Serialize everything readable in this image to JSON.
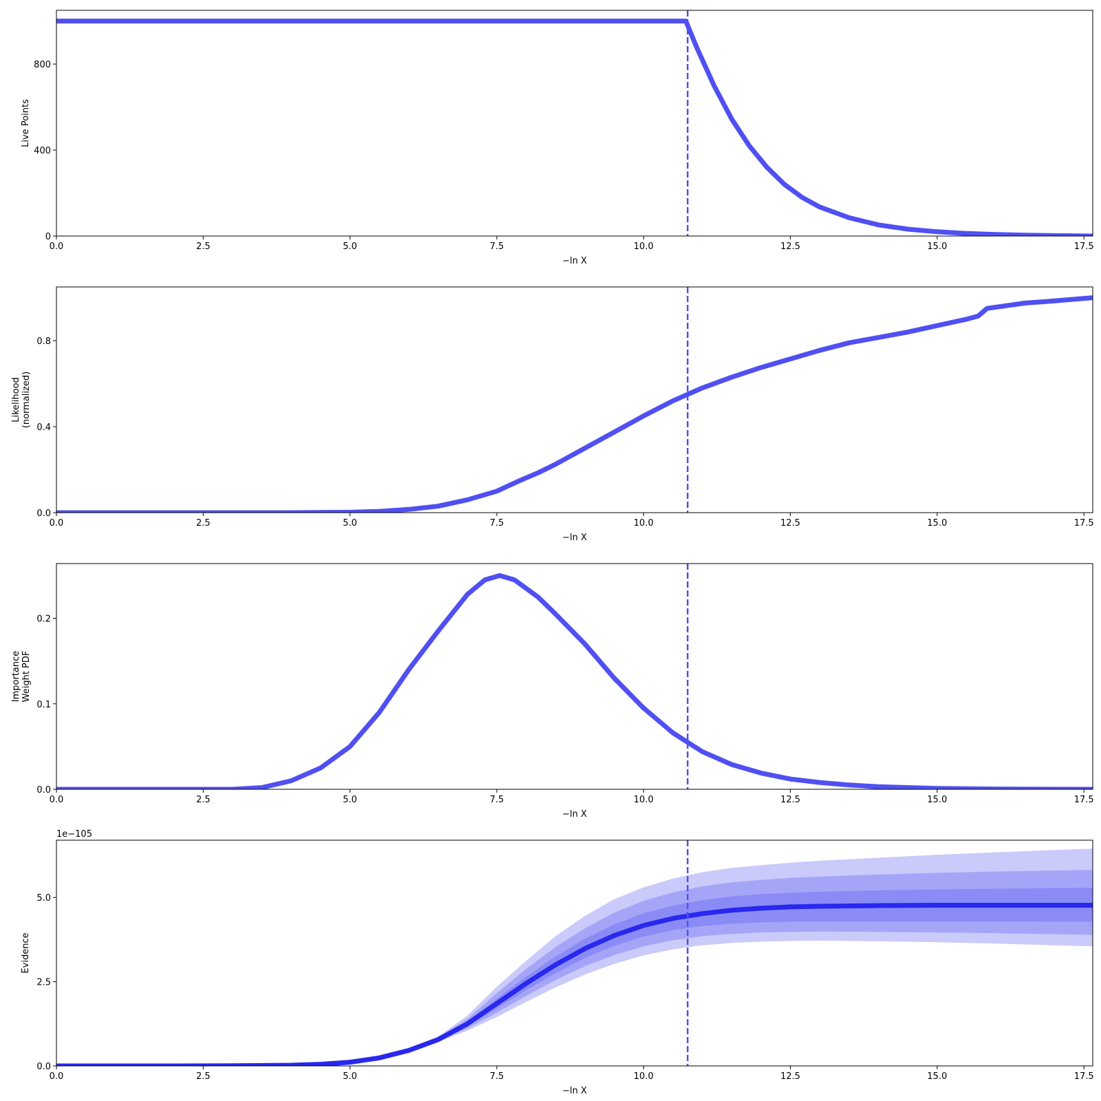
{
  "colors": {
    "line": "#5050f2",
    "evidence_line": "#2828ee",
    "band": "#5050f2"
  },
  "chart_data": [
    {
      "type": "line",
      "id": "live-points",
      "ylabel": [
        "Live Points"
      ],
      "xlabel": "−ln X",
      "xlim": [
        0,
        17.65
      ],
      "ylim": [
        0,
        1050
      ],
      "xticks": [
        0,
        2.5,
        5,
        7.5,
        10,
        12.5,
        15,
        17.5
      ],
      "xtick_labels": [
        "0.0",
        "2.5",
        "5.0",
        "7.5",
        "10.0",
        "12.5",
        "15.0",
        "17.5"
      ],
      "yticks": [
        0,
        400,
        800
      ],
      "ytick_labels": [
        "0",
        "400",
        "800"
      ],
      "vline": 10.75,
      "series": [
        {
          "x": [
            0,
            10.72,
            10.9,
            11.2,
            11.5,
            11.8,
            12.1,
            12.4,
            12.7,
            13.0,
            13.5,
            14.0,
            14.5,
            15.0,
            15.5,
            16.0,
            16.5,
            17.0,
            17.65
          ],
          "y": [
            1000,
            1000,
            880,
            700,
            545,
            420,
            320,
            240,
            180,
            135,
            85,
            52,
            32,
            20,
            12,
            7,
            4,
            2,
            0
          ]
        }
      ]
    },
    {
      "type": "line",
      "id": "likelihood",
      "ylabel": [
        "Likelihood",
        "(normalized)"
      ],
      "xlabel": "−ln X",
      "xlim": [
        0,
        17.65
      ],
      "ylim": [
        0,
        1.05
      ],
      "xticks": [
        0,
        2.5,
        5,
        7.5,
        10,
        12.5,
        15,
        17.5
      ],
      "xtick_labels": [
        "0.0",
        "2.5",
        "5.0",
        "7.5",
        "10.0",
        "12.5",
        "15.0",
        "17.5"
      ],
      "yticks": [
        0,
        0.4,
        0.8
      ],
      "ytick_labels": [
        "0.0",
        "0.4",
        "0.8"
      ],
      "vline": 10.75,
      "series": [
        {
          "x": [
            0,
            4.0,
            5.0,
            5.5,
            6.0,
            6.5,
            7.0,
            7.5,
            7.9,
            8.2,
            8.5,
            9.0,
            9.5,
            10.0,
            10.5,
            11.0,
            11.5,
            12.0,
            12.5,
            13.0,
            13.5,
            14.0,
            14.5,
            15.0,
            15.5,
            15.7,
            15.85,
            16.5,
            17.0,
            17.65
          ],
          "y": [
            0,
            0,
            0.002,
            0.006,
            0.015,
            0.03,
            0.06,
            0.1,
            0.15,
            0.185,
            0.225,
            0.3,
            0.375,
            0.45,
            0.52,
            0.58,
            0.63,
            0.675,
            0.715,
            0.755,
            0.79,
            0.815,
            0.84,
            0.87,
            0.9,
            0.915,
            0.95,
            0.975,
            0.985,
            1.0
          ]
        }
      ]
    },
    {
      "type": "line",
      "id": "importance-weight",
      "ylabel": [
        "Importance",
        "Weight PDF"
      ],
      "xlabel": "−ln X",
      "xlim": [
        0,
        17.65
      ],
      "ylim": [
        0,
        0.264
      ],
      "xticks": [
        0,
        2.5,
        5,
        7.5,
        10,
        12.5,
        15,
        17.5
      ],
      "xtick_labels": [
        "0.0",
        "2.5",
        "5.0",
        "7.5",
        "10.0",
        "12.5",
        "15.0",
        "17.5"
      ],
      "yticks": [
        0,
        0.1,
        0.2
      ],
      "ytick_labels": [
        "0.0",
        "0.1",
        "0.2"
      ],
      "vline": 10.75,
      "series": [
        {
          "x": [
            0,
            3.0,
            3.5,
            4.0,
            4.5,
            5.0,
            5.5,
            6.0,
            6.5,
            7.0,
            7.3,
            7.55,
            7.8,
            8.2,
            8.5,
            9.0,
            9.5,
            10.0,
            10.5,
            10.75,
            11.0,
            11.5,
            12.0,
            12.5,
            13.0,
            13.5,
            14.0,
            15.0,
            16.0,
            17.65
          ],
          "y": [
            0,
            0,
            0.002,
            0.01,
            0.025,
            0.05,
            0.09,
            0.14,
            0.185,
            0.228,
            0.245,
            0.25,
            0.245,
            0.225,
            0.205,
            0.17,
            0.13,
            0.095,
            0.066,
            0.055,
            0.044,
            0.029,
            0.019,
            0.012,
            0.008,
            0.005,
            0.003,
            0.001,
            0.0003,
            0
          ]
        }
      ]
    },
    {
      "type": "area",
      "id": "evidence",
      "ylabel": [
        "Evidence"
      ],
      "xlabel": "−ln X",
      "offset_label": "1e−105",
      "xlim": [
        0,
        17.65
      ],
      "ylim": [
        0,
        6.7
      ],
      "xticks": [
        0,
        2.5,
        5,
        7.5,
        10,
        12.5,
        15,
        17.5
      ],
      "xtick_labels": [
        "0.0",
        "2.5",
        "5.0",
        "7.5",
        "10.0",
        "12.5",
        "15.0",
        "17.5"
      ],
      "yticks": [
        0,
        2.5,
        5.0
      ],
      "ytick_labels": [
        "0.0",
        "2.5",
        "5.0"
      ],
      "vline": 10.75,
      "x": [
        0,
        2.0,
        3.0,
        4.0,
        4.5,
        5.0,
        5.5,
        6.0,
        6.5,
        7.0,
        7.5,
        8.0,
        8.5,
        9.0,
        9.5,
        10.0,
        10.5,
        11.0,
        11.5,
        12.0,
        12.5,
        13.0,
        14.0,
        15.0,
        16.0,
        17.0,
        17.65
      ],
      "median": [
        0,
        0,
        0.005,
        0.02,
        0.05,
        0.11,
        0.24,
        0.46,
        0.78,
        1.25,
        1.85,
        2.45,
        3.0,
        3.48,
        3.87,
        4.17,
        4.38,
        4.52,
        4.62,
        4.68,
        4.72,
        4.74,
        4.76,
        4.77,
        4.77,
        4.77,
        4.77
      ],
      "band1_low": [
        0,
        0,
        0.005,
        0.02,
        0.05,
        0.1,
        0.23,
        0.44,
        0.75,
        1.18,
        1.7,
        2.25,
        2.75,
        3.2,
        3.56,
        3.84,
        4.03,
        4.15,
        4.22,
        4.26,
        4.28,
        4.29,
        4.29,
        4.29,
        4.29,
        4.28,
        4.28
      ],
      "band1_high": [
        0,
        0,
        0.005,
        0.02,
        0.05,
        0.12,
        0.25,
        0.48,
        0.81,
        1.32,
        2.0,
        2.65,
        3.25,
        3.77,
        4.2,
        4.53,
        4.76,
        4.92,
        5.03,
        5.1,
        5.14,
        5.17,
        5.21,
        5.24,
        5.26,
        5.28,
        5.29
      ],
      "band2_low": [
        0,
        0,
        0.005,
        0.02,
        0.05,
        0.1,
        0.22,
        0.43,
        0.73,
        1.12,
        1.58,
        2.08,
        2.55,
        2.96,
        3.29,
        3.55,
        3.73,
        3.85,
        3.92,
        3.96,
        3.98,
        3.99,
        3.98,
        3.96,
        3.94,
        3.91,
        3.89
      ],
      "band2_high": [
        0,
        0,
        0.005,
        0.02,
        0.05,
        0.12,
        0.26,
        0.5,
        0.84,
        1.4,
        2.16,
        2.88,
        3.53,
        4.08,
        4.55,
        4.9,
        5.15,
        5.33,
        5.45,
        5.52,
        5.58,
        5.62,
        5.68,
        5.73,
        5.77,
        5.8,
        5.82
      ],
      "band3_low": [
        0,
        0,
        0.005,
        0.02,
        0.05,
        0.1,
        0.21,
        0.42,
        0.71,
        1.05,
        1.45,
        1.9,
        2.33,
        2.71,
        3.03,
        3.28,
        3.46,
        3.58,
        3.65,
        3.69,
        3.71,
        3.72,
        3.7,
        3.67,
        3.63,
        3.58,
        3.55
      ],
      "band3_high": [
        0,
        0,
        0.005,
        0.02,
        0.05,
        0.13,
        0.27,
        0.52,
        0.87,
        1.5,
        2.35,
        3.12,
        3.85,
        4.45,
        4.95,
        5.3,
        5.56,
        5.75,
        5.88,
        5.96,
        6.03,
        6.09,
        6.18,
        6.27,
        6.34,
        6.41,
        6.45
      ]
    }
  ]
}
